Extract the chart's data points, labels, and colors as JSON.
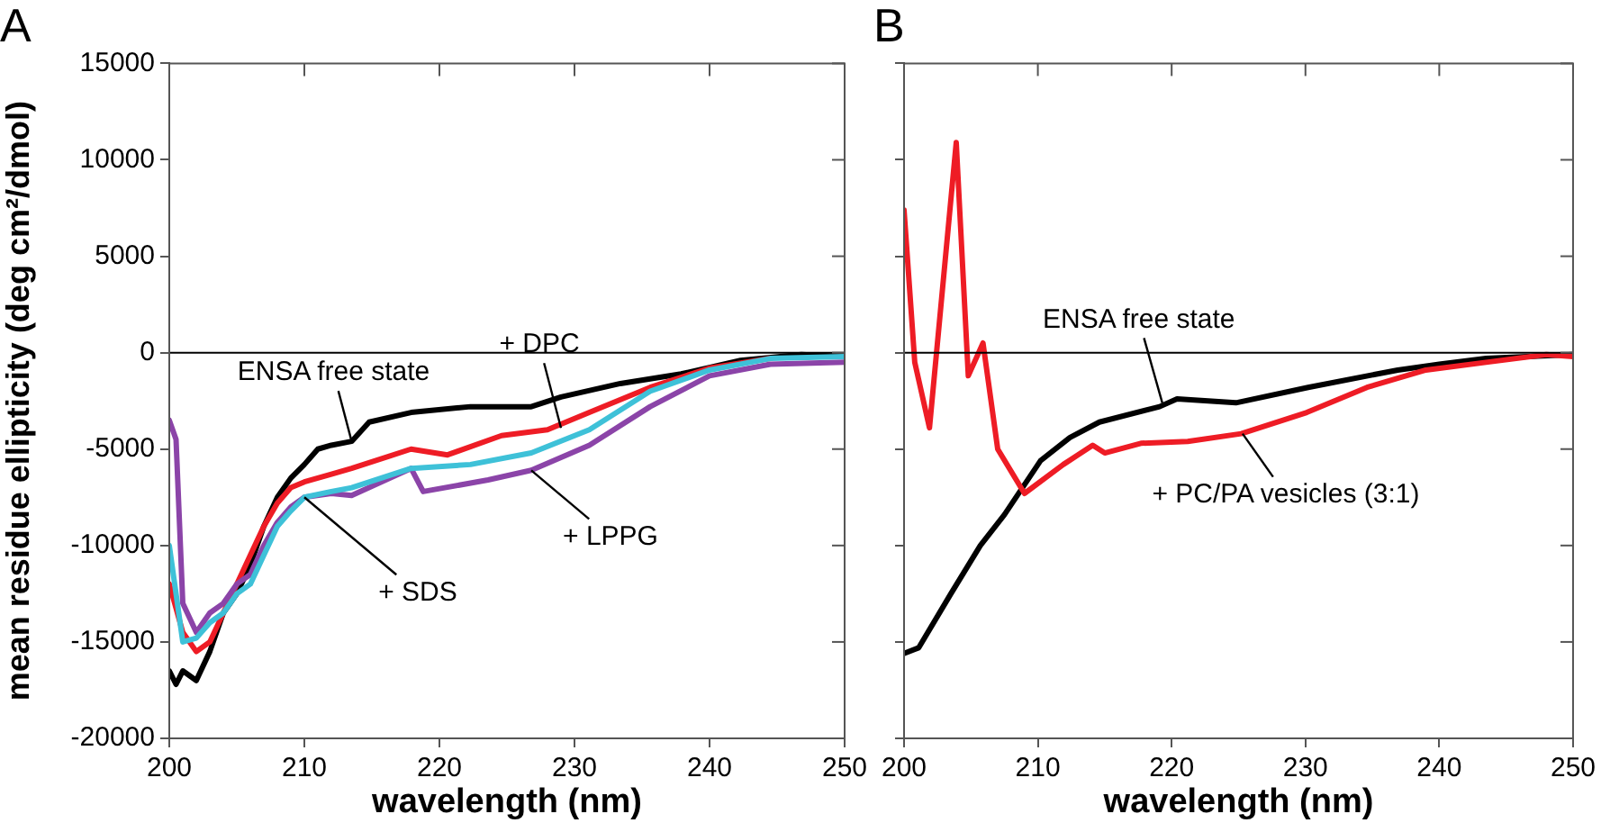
{
  "chart_data": [
    {
      "type": "line",
      "title": "A",
      "xlabel": "wavelength (nm)",
      "ylabel": "mean residue ellipticity (deg cm²/dmol)",
      "xlim": [
        200,
        250
      ],
      "xticks": [
        200,
        210,
        220,
        230,
        240,
        250
      ],
      "ylim": [
        -20000,
        15000
      ],
      "yticks": [
        -20000,
        -15000,
        -10000,
        -5000,
        0,
        5000,
        10000,
        15000
      ],
      "grid": false,
      "legend": false,
      "marker": "none",
      "line_style": "solid",
      "ref_lines": [
        {
          "axis": "y",
          "value": 0,
          "color": "#000000"
        }
      ],
      "series": [
        {
          "color": "#3ec1d8",
          "x": [
            200,
            201,
            202,
            203,
            204,
            205,
            206,
            207,
            208,
            209,
            210,
            212,
            213.5,
            217.9,
            222.3,
            226.8,
            231.1,
            235.6,
            240,
            244.5,
            250
          ],
          "values": [
            -10000,
            -15000,
            -14800,
            -14000,
            -13500,
            -12500,
            -12000,
            -10500,
            -9000,
            -8200,
            -7500,
            -7200,
            -7000,
            -6000,
            -5800,
            -5200,
            -4000,
            -2000,
            -900,
            -300,
            -200
          ]
        },
        {
          "color": "#8b44a8",
          "x": [
            200,
            200.5,
            201,
            202,
            203,
            204,
            205,
            206,
            207,
            208,
            209,
            210,
            212,
            213.5,
            217.9,
            218.8,
            223.6,
            226.8,
            231.1,
            235.6,
            240,
            244.5,
            250
          ],
          "values": [
            -3500,
            -4500,
            -13000,
            -14500,
            -13500,
            -13000,
            -12000,
            -11500,
            -10000,
            -8800,
            -8000,
            -7500,
            -7300,
            -7400,
            -6000,
            -7200,
            -6600,
            -6100,
            -4800,
            -2800,
            -1200,
            -600,
            -500
          ]
        },
        {
          "color": "#ee1c25",
          "x": [
            200,
            201,
            202,
            203,
            204,
            205,
            206,
            207,
            208,
            209,
            210,
            212,
            213.5,
            217.9,
            220.6,
            224.6,
            228,
            231.1,
            235.6,
            240,
            244.5
          ],
          "values": [
            -12000,
            -14500,
            -15500,
            -15000,
            -13500,
            -12000,
            -10500,
            -9000,
            -7800,
            -7000,
            -6700,
            -6300,
            -6000,
            -5000,
            -5300,
            -4300,
            -4000,
            -3100,
            -1800,
            -800,
            -300
          ]
        },
        {
          "color": "#000000",
          "x": [
            200,
            200.5,
            201,
            202,
            203,
            204,
            205,
            206,
            207,
            208,
            209,
            210,
            211,
            212,
            213.5,
            214.8,
            217.9,
            222.3,
            226.8,
            229,
            233.4,
            237.9,
            242.3,
            246.8,
            250
          ],
          "values": [
            -16500,
            -17200,
            -16500,
            -17000,
            -15500,
            -13500,
            -12500,
            -11000,
            -9000,
            -7500,
            -6500,
            -5800,
            -5000,
            -4800,
            -4600,
            -3600,
            -3100,
            -2800,
            -2800,
            -2300,
            -1600,
            -1100,
            -400,
            -100,
            -200
          ]
        }
      ],
      "annotations": [
        {
          "text": "ENSA free state",
          "x": 213.5,
          "y": -4600
        },
        {
          "text": "+ DPC",
          "x": 229,
          "y": -3900
        },
        {
          "text": "+ LPPG",
          "x": 226.8,
          "y": -6100
        },
        {
          "text": "+ SDS",
          "x": 210,
          "y": -7500
        }
      ]
    },
    {
      "type": "line",
      "title": "B",
      "xlabel": "wavelength (nm)",
      "xlim": [
        200,
        250
      ],
      "xticks": [
        200,
        210,
        220,
        230,
        240,
        250
      ],
      "ylim": [
        -20000,
        15000
      ],
      "yticks": [
        -20000,
        -15000,
        -10000,
        -5000,
        0,
        5000,
        10000,
        15000
      ],
      "tick_labels": "x",
      "grid": false,
      "legend": false,
      "marker": "none",
      "line_style": "solid",
      "ref_lines": [
        {
          "axis": "y",
          "value": 0,
          "color": "#000000"
        }
      ],
      "series": [
        {
          "color": "#ee1c25",
          "x": [
            200,
            200.8,
            201.9,
            203.9,
            204.8,
            205.9,
            207,
            209,
            211.9,
            214.1,
            215,
            217.7,
            221.2,
            225.2,
            230.1,
            234.6,
            239,
            243.5,
            248,
            250
          ],
          "values": [
            7400,
            -500,
            -3900,
            10900,
            -1200,
            500,
            -5000,
            -7300,
            -5800,
            -4800,
            -5200,
            -4700,
            -4600,
            -4200,
            -3100,
            -1800,
            -900,
            -500,
            -100,
            -200
          ]
        },
        {
          "color": "#000000",
          "x": [
            200,
            201.1,
            203.5,
            205.7,
            207.5,
            210.2,
            212.4,
            214.6,
            219.1,
            220.4,
            224.8,
            230.2,
            236.9,
            240,
            243.5,
            250
          ],
          "values": [
            -15600,
            -15300,
            -12500,
            -10000,
            -8400,
            -5600,
            -4400,
            -3600,
            -2800,
            -2400,
            -2600,
            -1800,
            -900,
            -600,
            -300,
            -100
          ]
        }
      ],
      "annotations": [
        {
          "text": "ENSA free state",
          "x": 219.3,
          "y": -2600
        },
        {
          "text": "+ PC/PA vesicles (3:1)",
          "x": 225.3,
          "y": -4200
        }
      ]
    }
  ]
}
